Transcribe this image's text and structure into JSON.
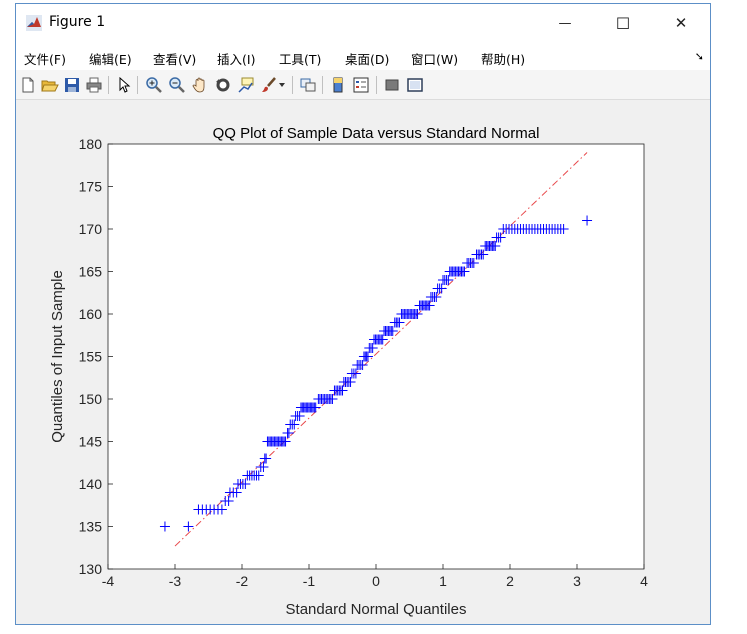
{
  "window": {
    "title": "Figure 1",
    "controls": {
      "minimize": "—",
      "maximize": "☐",
      "close": "✕"
    }
  },
  "menu": [
    "文件(F)",
    "编辑(E)",
    "查看(V)",
    "插入(I)",
    "工具(T)",
    "桌面(D)",
    "窗口(W)",
    "帮助(H)"
  ],
  "toolbar": {
    "icons": [
      "new-figure-icon",
      "open-file-icon",
      "save-icon",
      "print-icon",
      "pointer-icon",
      "zoom-in-icon",
      "zoom-out-icon",
      "pan-icon",
      "rotate-3d-icon",
      "data-cursor-icon",
      "brush-icon",
      "link-plot-icon",
      "colorbar-icon",
      "legend-icon",
      "hide-plot-tools-icon",
      "show-plot-tools-icon"
    ]
  },
  "colors": {
    "markers": "#0000ff",
    "refline": "#e8484b",
    "plotbg": "#ffffff",
    "figbg": "#f0f0f0"
  },
  "chart_data": {
    "type": "scatter",
    "title": "QQ Plot of Sample Data versus Standard Normal",
    "xlabel": "Standard Normal Quantiles",
    "ylabel": "Quantiles of Input Sample",
    "xlim": [
      -4,
      4
    ],
    "ylim": [
      130,
      180
    ],
    "xticks": [
      -4,
      -3,
      -2,
      -1,
      0,
      1,
      2,
      3,
      4
    ],
    "yticks": [
      130,
      135,
      140,
      145,
      150,
      155,
      160,
      165,
      170,
      175,
      180
    ],
    "reference_line": {
      "style": "dash-dot",
      "x": [
        -3.0,
        3.15
      ],
      "y": [
        132.7,
        179.0
      ]
    },
    "groups": [
      {
        "y": 135,
        "x_from": -3.15,
        "x_to": -3.15,
        "count": 1
      },
      {
        "y": 135,
        "x_from": -2.8,
        "x_to": -2.8,
        "count": 1
      },
      {
        "y": 137,
        "x_from": -2.65,
        "x_to": -2.3,
        "count": 7
      },
      {
        "y": 138,
        "x_from": -2.25,
        "x_to": -2.2,
        "count": 2
      },
      {
        "y": 139,
        "x_from": -2.18,
        "x_to": -2.08,
        "count": 3
      },
      {
        "y": 140,
        "x_from": -2.06,
        "x_to": -1.95,
        "count": 4
      },
      {
        "y": 141,
        "x_from": -1.92,
        "x_to": -1.75,
        "count": 6
      },
      {
        "y": 142,
        "x_from": -1.72,
        "x_to": -1.68,
        "count": 2
      },
      {
        "y": 143,
        "x_from": -1.66,
        "x_to": -1.64,
        "count": 2
      },
      {
        "y": 145,
        "x_from": -1.62,
        "x_to": -1.35,
        "count": 14
      },
      {
        "y": 146,
        "x_from": -1.32,
        "x_to": -1.3,
        "count": 2
      },
      {
        "y": 147,
        "x_from": -1.28,
        "x_to": -1.22,
        "count": 3
      },
      {
        "y": 148,
        "x_from": -1.2,
        "x_to": -1.14,
        "count": 3
      },
      {
        "y": 149,
        "x_from": -1.12,
        "x_to": -0.9,
        "count": 12
      },
      {
        "y": 150,
        "x_from": -0.86,
        "x_to": -0.65,
        "count": 10
      },
      {
        "y": 151,
        "x_from": -0.62,
        "x_to": -0.5,
        "count": 6
      },
      {
        "y": 152,
        "x_from": -0.48,
        "x_to": -0.38,
        "count": 5
      },
      {
        "y": 153,
        "x_from": -0.36,
        "x_to": -0.3,
        "count": 3
      },
      {
        "y": 154,
        "x_from": -0.28,
        "x_to": -0.2,
        "count": 4
      },
      {
        "y": 155,
        "x_from": -0.18,
        "x_to": -0.12,
        "count": 4
      },
      {
        "y": 156,
        "x_from": -0.1,
        "x_to": -0.05,
        "count": 3
      },
      {
        "y": 157,
        "x_from": -0.03,
        "x_to": 0.1,
        "count": 7
      },
      {
        "y": 158,
        "x_from": 0.12,
        "x_to": 0.25,
        "count": 7
      },
      {
        "y": 159,
        "x_from": 0.28,
        "x_to": 0.35,
        "count": 4
      },
      {
        "y": 160,
        "x_from": 0.38,
        "x_to": 0.62,
        "count": 12
      },
      {
        "y": 161,
        "x_from": 0.65,
        "x_to": 0.8,
        "count": 8
      },
      {
        "y": 162,
        "x_from": 0.82,
        "x_to": 0.9,
        "count": 4
      },
      {
        "y": 163,
        "x_from": 0.92,
        "x_to": 0.98,
        "count": 3
      },
      {
        "y": 164,
        "x_from": 1.0,
        "x_to": 1.08,
        "count": 4
      },
      {
        "y": 165,
        "x_from": 1.1,
        "x_to": 1.32,
        "count": 11
      },
      {
        "y": 166,
        "x_from": 1.36,
        "x_to": 1.46,
        "count": 5
      },
      {
        "y": 167,
        "x_from": 1.5,
        "x_to": 1.6,
        "count": 5
      },
      {
        "y": 168,
        "x_from": 1.63,
        "x_to": 1.78,
        "count": 8
      },
      {
        "y": 169,
        "x_from": 1.8,
        "x_to": 1.86,
        "count": 3
      },
      {
        "y": 170,
        "x_from": 1.9,
        "x_to": 2.8,
        "count": 22
      },
      {
        "y": 171,
        "x_from": 3.15,
        "x_to": 3.15,
        "count": 1
      }
    ]
  }
}
